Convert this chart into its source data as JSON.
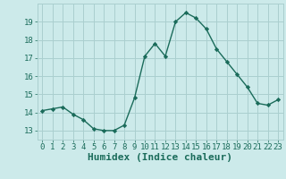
{
  "x": [
    0,
    1,
    2,
    3,
    4,
    5,
    6,
    7,
    8,
    9,
    10,
    11,
    12,
    13,
    14,
    15,
    16,
    17,
    18,
    19,
    20,
    21,
    22,
    23
  ],
  "y": [
    14.1,
    14.2,
    14.3,
    13.9,
    13.6,
    13.1,
    13.0,
    13.0,
    13.3,
    14.8,
    17.1,
    17.8,
    17.1,
    19.0,
    19.5,
    19.2,
    18.6,
    17.5,
    16.8,
    16.1,
    15.4,
    14.5,
    14.4,
    14.7
  ],
  "line_color": "#1a6b5a",
  "marker": "D",
  "marker_size": 2.2,
  "bg_color": "#cceaea",
  "grid_color": "#aacfcf",
  "xlabel": "Humidex (Indice chaleur)",
  "ylim": [
    12.5,
    20.0
  ],
  "xlim": [
    -0.5,
    23.5
  ],
  "yticks": [
    13,
    14,
    15,
    16,
    17,
    18,
    19
  ],
  "xticks": [
    0,
    1,
    2,
    3,
    4,
    5,
    6,
    7,
    8,
    9,
    10,
    11,
    12,
    13,
    14,
    15,
    16,
    17,
    18,
    19,
    20,
    21,
    22,
    23
  ],
  "tick_color": "#1a6b5a",
  "label_color": "#1a6b5a",
  "xlabel_fontsize": 8,
  "tick_fontsize": 6.5,
  "linewidth": 1.0
}
